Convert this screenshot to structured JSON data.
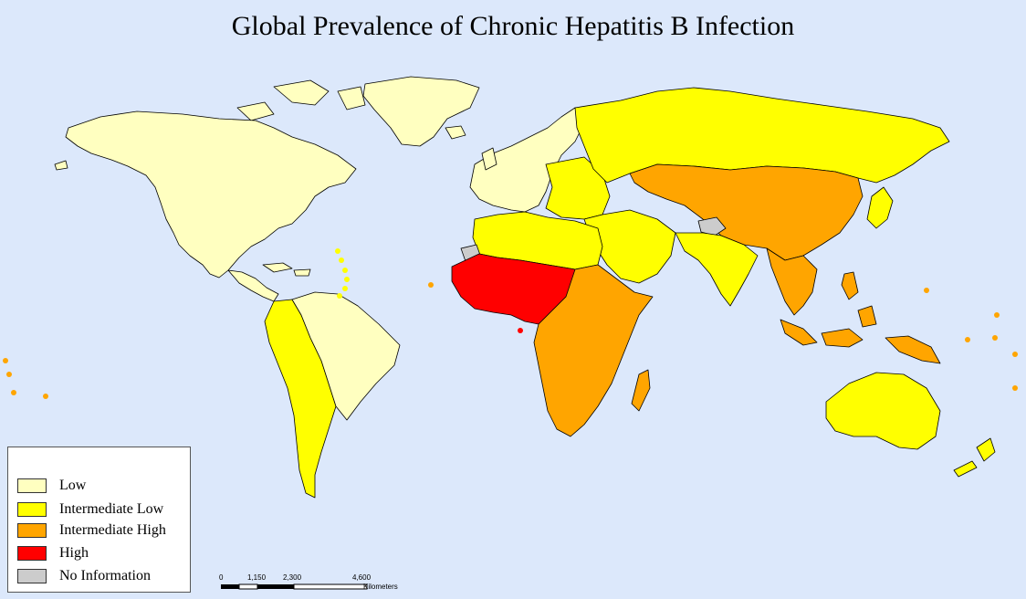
{
  "title": "Global Prevalence of Chronic Hepatitis B Infection",
  "colors": {
    "ocean": "#dce8fb",
    "low": "#ffffc0",
    "intermediate_low": "#ffff00",
    "intermediate_high": "#ffa500",
    "high": "#ff0000",
    "no_information": "#cccccc"
  },
  "legend": [
    {
      "label": "Low",
      "color": "#ffffc0"
    },
    {
      "label": "Intermediate Low",
      "color": "#ffff00"
    },
    {
      "label": "Intermediate High",
      "color": "#ffa500"
    },
    {
      "label": "High",
      "color": "#ff0000"
    },
    {
      "label": "No Information",
      "color": "#cccccc"
    }
  ],
  "scale_bar": {
    "ticks": [
      "0",
      "1,150",
      "2,300",
      "4,600"
    ],
    "unit": "Kilometers"
  },
  "regions": {
    "north_america": "low",
    "greenland": "low",
    "central_america": "low",
    "south_america_east": "low",
    "south_america_west": "intermediate_low",
    "western_europe": "low",
    "eastern_europe": "intermediate_low",
    "russia": "intermediate_low",
    "north_africa": "intermediate_low",
    "middle_east": "intermediate_low",
    "india": "intermediate_low",
    "central_asia": "intermediate_high",
    "china": "intermediate_high",
    "japan": "intermediate_low",
    "southeast_asia": "intermediate_high",
    "indonesia": "intermediate_high",
    "west_africa": "high",
    "sub_saharan_africa": "intermediate_high",
    "madagascar": "intermediate_high",
    "australia": "intermediate_low",
    "new_zealand": "intermediate_low",
    "western_sahara": "no_information",
    "afghanistan": "no_information"
  }
}
